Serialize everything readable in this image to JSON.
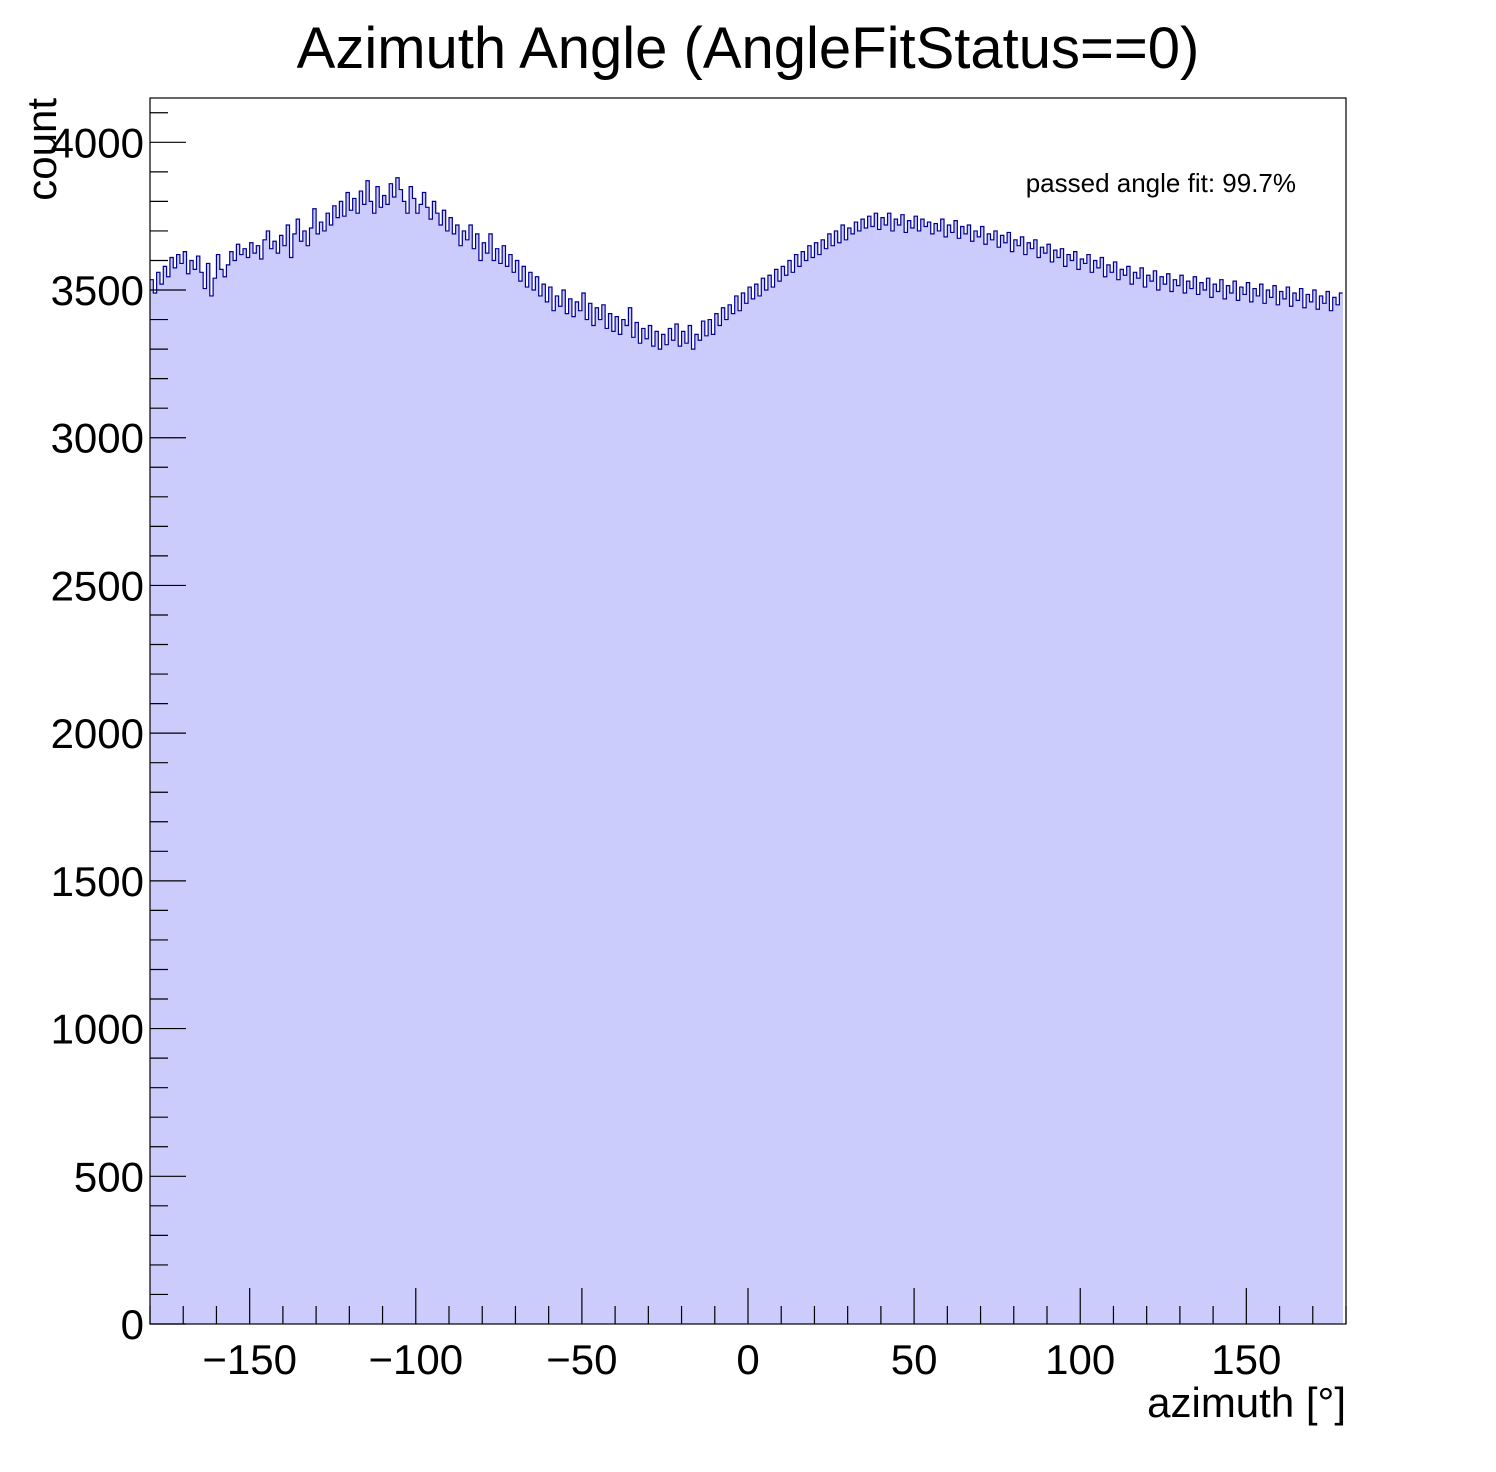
{
  "chart_data": {
    "type": "histogram",
    "title": "Azimuth Angle (AngleFitStatus==0)",
    "xlabel": "azimuth [°]",
    "ylabel": "count",
    "xlim": [
      -180,
      180
    ],
    "ylim": [
      0,
      4150
    ],
    "x_ticks": [
      -150,
      -100,
      -50,
      0,
      50,
      100,
      150
    ],
    "x_tick_labels": [
      "−150",
      "−100",
      "−50",
      "0",
      "50",
      "100",
      "150"
    ],
    "y_ticks": [
      0,
      500,
      1000,
      1500,
      2000,
      2500,
      3000,
      3500,
      4000
    ],
    "y_tick_labels": [
      "0",
      "500",
      "1000",
      "1500",
      "2000",
      "2500",
      "3000",
      "3500",
      "4000"
    ],
    "annotation": "passed angle fit: 99.7%",
    "colors": {
      "fill": "#ccccfc",
      "line": "#000099",
      "frame": "#000000"
    },
    "bin_edges_start": -180,
    "bin_width": 1,
    "values": [
      3535,
      3490,
      3560,
      3520,
      3580,
      3545,
      3610,
      3575,
      3620,
      3590,
      3630,
      3555,
      3600,
      3570,
      3615,
      3560,
      3505,
      3590,
      3480,
      3540,
      3620,
      3570,
      3545,
      3585,
      3630,
      3600,
      3655,
      3620,
      3640,
      3610,
      3660,
      3625,
      3650,
      3605,
      3670,
      3700,
      3640,
      3665,
      3625,
      3685,
      3650,
      3720,
      3610,
      3690,
      3740,
      3665,
      3700,
      3650,
      3710,
      3775,
      3690,
      3730,
      3700,
      3760,
      3720,
      3785,
      3745,
      3800,
      3750,
      3830,
      3770,
      3810,
      3760,
      3835,
      3790,
      3870,
      3800,
      3760,
      3850,
      3780,
      3820,
      3790,
      3860,
      3815,
      3880,
      3840,
      3800,
      3760,
      3850,
      3810,
      3760,
      3790,
      3830,
      3780,
      3740,
      3800,
      3760,
      3720,
      3770,
      3700,
      3745,
      3690,
      3720,
      3650,
      3700,
      3670,
      3720,
      3640,
      3690,
      3600,
      3660,
      3625,
      3690,
      3600,
      3640,
      3590,
      3650,
      3580,
      3620,
      3560,
      3600,
      3530,
      3580,
      3510,
      3560,
      3500,
      3545,
      3480,
      3520,
      3460,
      3510,
      3430,
      3480,
      3445,
      3500,
      3420,
      3470,
      3410,
      3460,
      3430,
      3490,
      3400,
      3455,
      3380,
      3440,
      3400,
      3450,
      3370,
      3420,
      3360,
      3410,
      3350,
      3400,
      3380,
      3440,
      3340,
      3390,
      3320,
      3370,
      3335,
      3380,
      3310,
      3360,
      3300,
      3350,
      3315,
      3370,
      3330,
      3385,
      3310,
      3360,
      3320,
      3380,
      3300,
      3350,
      3330,
      3395,
      3345,
      3400,
      3350,
      3420,
      3380,
      3440,
      3400,
      3450,
      3420,
      3480,
      3430,
      3490,
      3455,
      3510,
      3470,
      3520,
      3480,
      3540,
      3500,
      3550,
      3510,
      3570,
      3530,
      3580,
      3550,
      3600,
      3560,
      3620,
      3580,
      3630,
      3600,
      3650,
      3610,
      3660,
      3620,
      3670,
      3640,
      3690,
      3650,
      3700,
      3660,
      3720,
      3670,
      3710,
      3690,
      3730,
      3700,
      3740,
      3710,
      3750,
      3715,
      3760,
      3705,
      3745,
      3720,
      3760,
      3700,
      3740,
      3720,
      3755,
      3695,
      3735,
      3710,
      3750,
      3700,
      3740,
      3715,
      3730,
      3690,
      3725,
      3700,
      3740,
      3680,
      3720,
      3695,
      3735,
      3675,
      3715,
      3690,
      3720,
      3665,
      3700,
      3680,
      3715,
      3655,
      3690,
      3670,
      3700,
      3645,
      3685,
      3660,
      3695,
      3630,
      3670,
      3650,
      3680,
      3620,
      3660,
      3640,
      3670,
      3610,
      3645,
      3625,
      3655,
      3595,
      3635,
      3610,
      3640,
      3580,
      3620,
      3600,
      3630,
      3570,
      3605,
      3590,
      3620,
      3560,
      3600,
      3575,
      3610,
      3545,
      3585,
      3560,
      3595,
      3535,
      3570,
      3550,
      3580,
      3520,
      3560,
      3540,
      3575,
      3510,
      3550,
      3530,
      3565,
      3500,
      3545,
      3520,
      3555,
      3495,
      3535,
      3515,
      3550,
      3490,
      3530,
      3505,
      3545,
      3485,
      3525,
      3500,
      3540,
      3475,
      3520,
      3495,
      3535,
      3470,
      3515,
      3490,
      3530,
      3465,
      3510,
      3485,
      3525,
      3460,
      3505,
      3480,
      3520,
      3455,
      3500,
      3475,
      3515,
      3450,
      3495,
      3470,
      3510,
      3445,
      3490,
      3465,
      3505,
      3440,
      3485,
      3460,
      3500,
      3435,
      3480,
      3455,
      3495,
      3430,
      3475,
      3450,
      3490
    ]
  }
}
